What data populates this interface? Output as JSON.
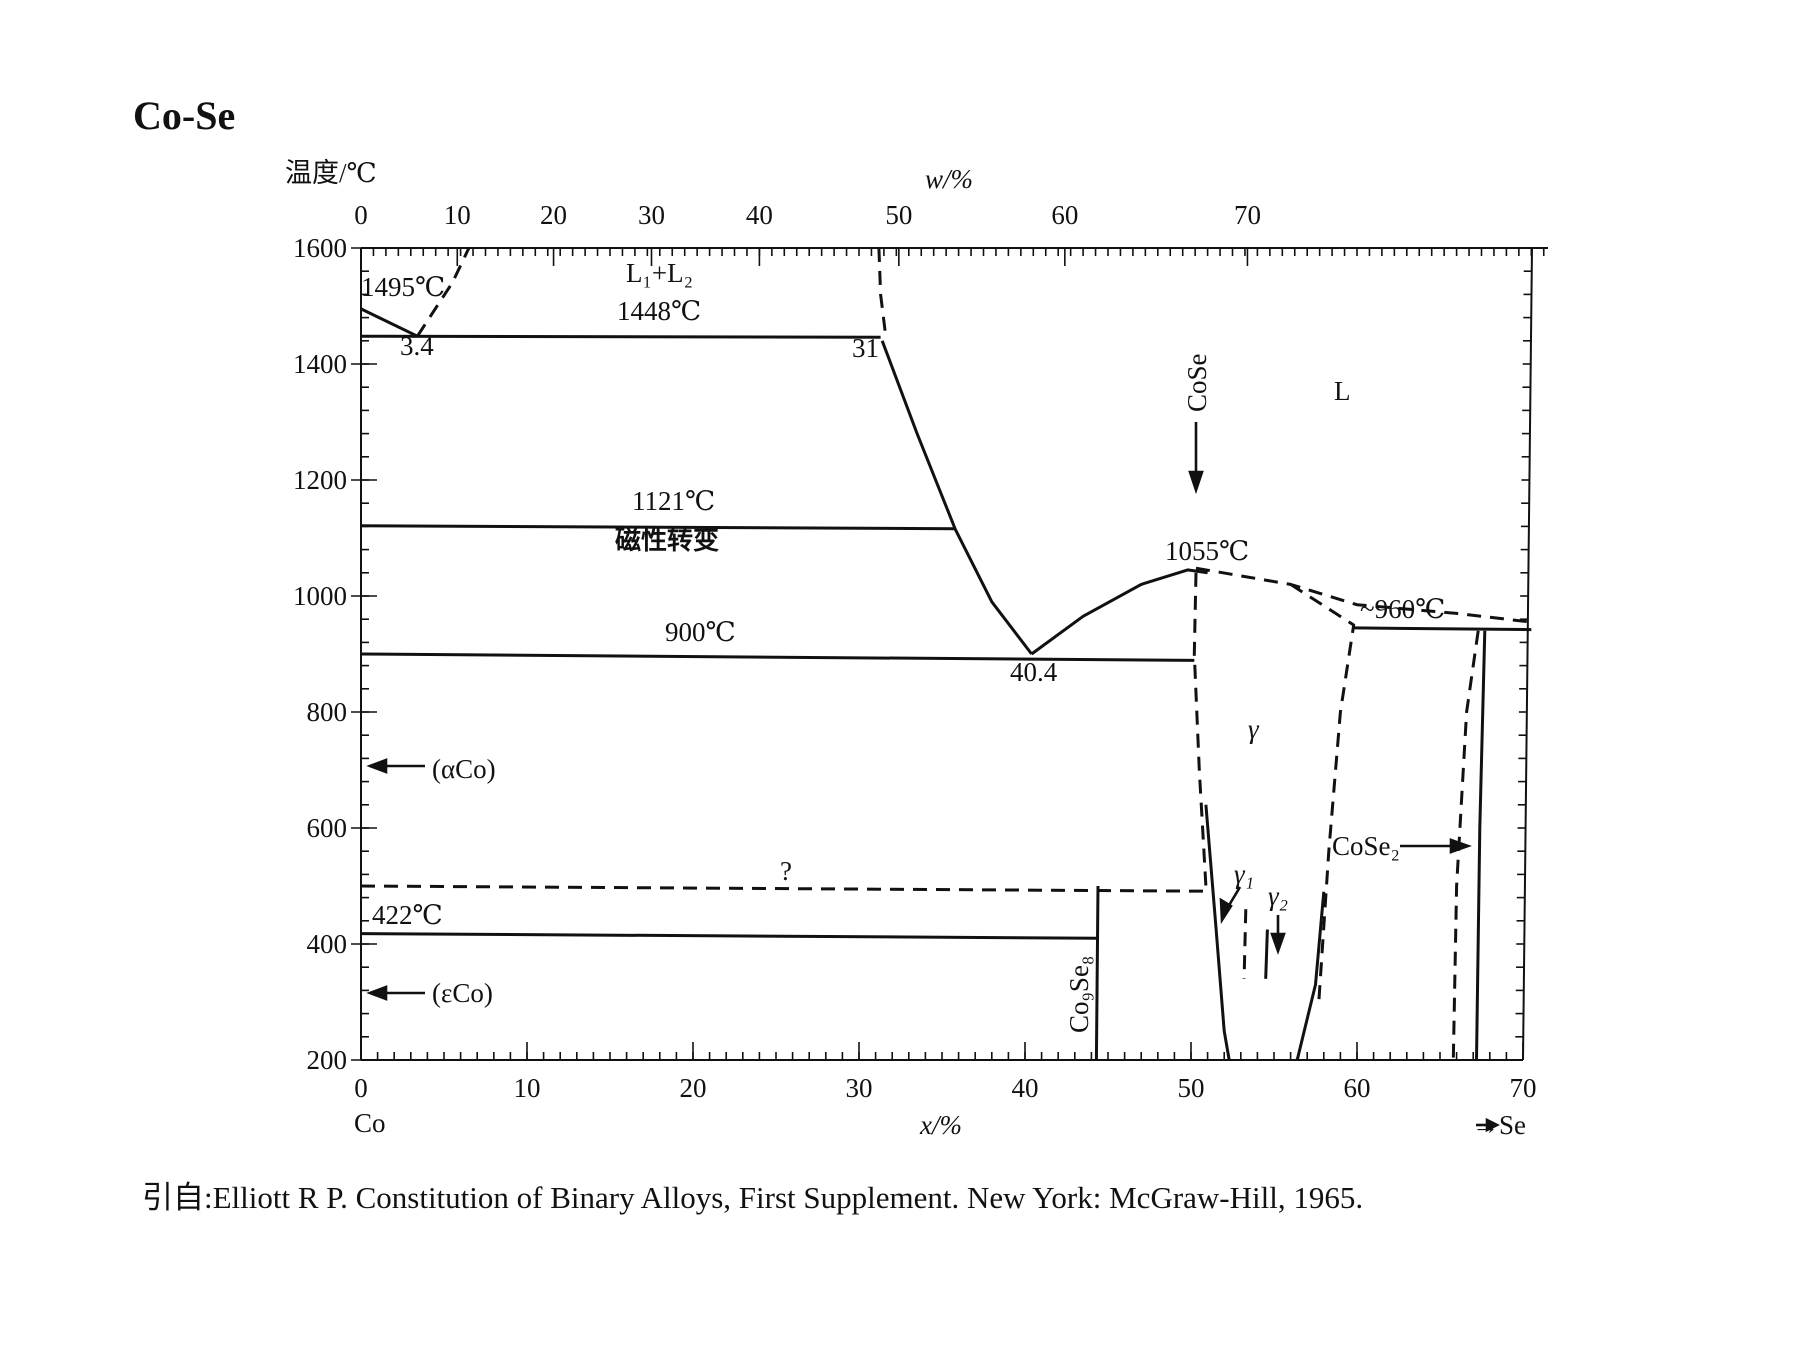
{
  "title": "Co-Se",
  "citation": "引自:Elliott R P. Constitution of Binary Alloys, First Supplement. New York: McGraw-Hill, 1965.",
  "chart_data": {
    "type": "line",
    "title": "Co-Se",
    "ylabel": "温度/℃",
    "xlabel_bottom": "x/%",
    "xlabel_top": "w/%",
    "left_element": "Co",
    "right_element": "→Se",
    "xlim": [
      0,
      70
    ],
    "ylim": [
      200,
      1600
    ],
    "x_ticks": [
      0,
      10,
      20,
      30,
      40,
      50,
      60,
      70
    ],
    "y_ticks": [
      200,
      400,
      600,
      800,
      1000,
      1200,
      1400,
      1600
    ],
    "w_ticks": [
      0,
      10,
      20,
      30,
      40,
      50,
      60,
      70
    ],
    "w_tick_positions_x": [
      0,
      5.8,
      11.6,
      17.5,
      24.0,
      32.4,
      42.4,
      53.4
    ],
    "lines": [
      {
        "name": "liquidus-co",
        "style": "solid",
        "points": [
          [
            0,
            1495
          ],
          [
            3.4,
            1448
          ]
        ]
      },
      {
        "name": "monotectic-gap-left",
        "style": "dashed",
        "points": [
          [
            3.4,
            1448
          ],
          [
            5.5,
            1540
          ],
          [
            6.5,
            1600
          ]
        ]
      },
      {
        "name": "monotectic-gap-right",
        "style": "dashed",
        "points": [
          [
            31.2,
            1600
          ],
          [
            31.3,
            1520
          ],
          [
            31.6,
            1450
          ]
        ]
      },
      {
        "name": "monotectic-isotherm",
        "style": "solid",
        "points": [
          [
            0,
            1448
          ],
          [
            31.3,
            1446
          ]
        ]
      },
      {
        "name": "liquidus-mid",
        "style": "solid",
        "points": [
          [
            31.4,
            1440
          ],
          [
            33.5,
            1280
          ],
          [
            35.8,
            1115
          ],
          [
            38.0,
            990
          ],
          [
            40.4,
            900
          ]
        ]
      },
      {
        "name": "liquidus-gamma",
        "style": "solid",
        "points": [
          [
            40.4,
            900
          ],
          [
            43.5,
            965
          ],
          [
            47.0,
            1020
          ],
          [
            49.8,
            1045
          ],
          [
            51.0,
            1040
          ]
        ]
      },
      {
        "name": "magnetic-isotherm",
        "style": "solid",
        "points": [
          [
            0,
            1121
          ],
          [
            35.8,
            1116
          ]
        ]
      },
      {
        "name": "eutectic-isotherm",
        "style": "solid",
        "points": [
          [
            0,
            900
          ],
          [
            50.2,
            889
          ]
        ]
      },
      {
        "name": "gamma-boundary-left",
        "style": "dashed",
        "points": [
          [
            50.3,
            1040
          ],
          [
            50.2,
            900
          ],
          [
            50.5,
            700
          ],
          [
            50.9,
            500
          ]
        ]
      },
      {
        "name": "gamma-boundary-left-low",
        "style": "solid",
        "points": [
          [
            50.9,
            640
          ],
          [
            51.5,
            430
          ],
          [
            52.0,
            250
          ],
          [
            52.3,
            200
          ]
        ]
      },
      {
        "name": "liquidus-upper",
        "style": "dashed",
        "points": [
          [
            50.3,
            1048
          ],
          [
            56.0,
            1020
          ],
          [
            60.0,
            985
          ],
          [
            66.0,
            970
          ],
          [
            70.5,
            955
          ]
        ]
      },
      {
        "name": "gamma-boundary-right",
        "style": "dashed",
        "points": [
          [
            56.0,
            1020
          ],
          [
            59.8,
            950
          ],
          [
            59.0,
            800
          ],
          [
            58.3,
            560
          ],
          [
            57.7,
            300
          ]
        ]
      },
      {
        "name": "gamma-boundary-right-low",
        "style": "solid",
        "points": [
          [
            58.0,
            490
          ],
          [
            57.5,
            330
          ],
          [
            56.4,
            200
          ]
        ]
      },
      {
        "name": "peritectic-960",
        "style": "solid",
        "points": [
          [
            59.8,
            945
          ],
          [
            70.5,
            942
          ]
        ]
      },
      {
        "name": "cose2-left-boundary",
        "style": "dashed",
        "points": [
          [
            67.3,
            940
          ],
          [
            66.6,
            800
          ],
          [
            66.0,
            500
          ],
          [
            65.8,
            200
          ]
        ]
      },
      {
        "name": "cose2-line",
        "style": "solid",
        "points": [
          [
            67.7,
            940
          ],
          [
            67.4,
            600
          ],
          [
            67.2,
            200
          ]
        ]
      },
      {
        "name": "dashed-500",
        "style": "dashed",
        "points": [
          [
            0,
            500
          ],
          [
            50.9,
            491
          ]
        ]
      },
      {
        "name": "co9se8-line",
        "style": "solid",
        "points": [
          [
            44.4,
            500
          ],
          [
            44.3,
            200
          ]
        ]
      },
      {
        "name": "eutectoid-422",
        "style": "solid",
        "points": [
          [
            0,
            418
          ],
          [
            44.4,
            410
          ]
        ]
      },
      {
        "name": "gamma1-gamma2-dash",
        "style": "dashed",
        "points": [
          [
            53.3,
            460
          ],
          [
            53.2,
            340
          ]
        ]
      },
      {
        "name": "gamma1-gamma2-solid",
        "style": "solid",
        "points": [
          [
            54.6,
            425
          ],
          [
            54.5,
            340
          ]
        ]
      }
    ],
    "labels": {
      "t1495": "1495℃",
      "x34": "3.4",
      "l1l2": "L₁+L₂",
      "t1448": "1448℃",
      "x31": "31",
      "cose": "CoSe",
      "liquid": "L",
      "t1121": "1121℃",
      "magnetic": "磁性转变",
      "t1055": "1055℃",
      "t960": "~960℃",
      "t900": "900℃",
      "x404": "40.4",
      "gamma": "γ",
      "alpha_co": "(αCo)",
      "cose2": "CoSe₂",
      "question": "?",
      "gamma1": "γ₁",
      "gamma2": "γ₂",
      "t422": "422℃",
      "epsilon_co": "(εCo)",
      "co9se8": "Co₉Se₈"
    }
  }
}
